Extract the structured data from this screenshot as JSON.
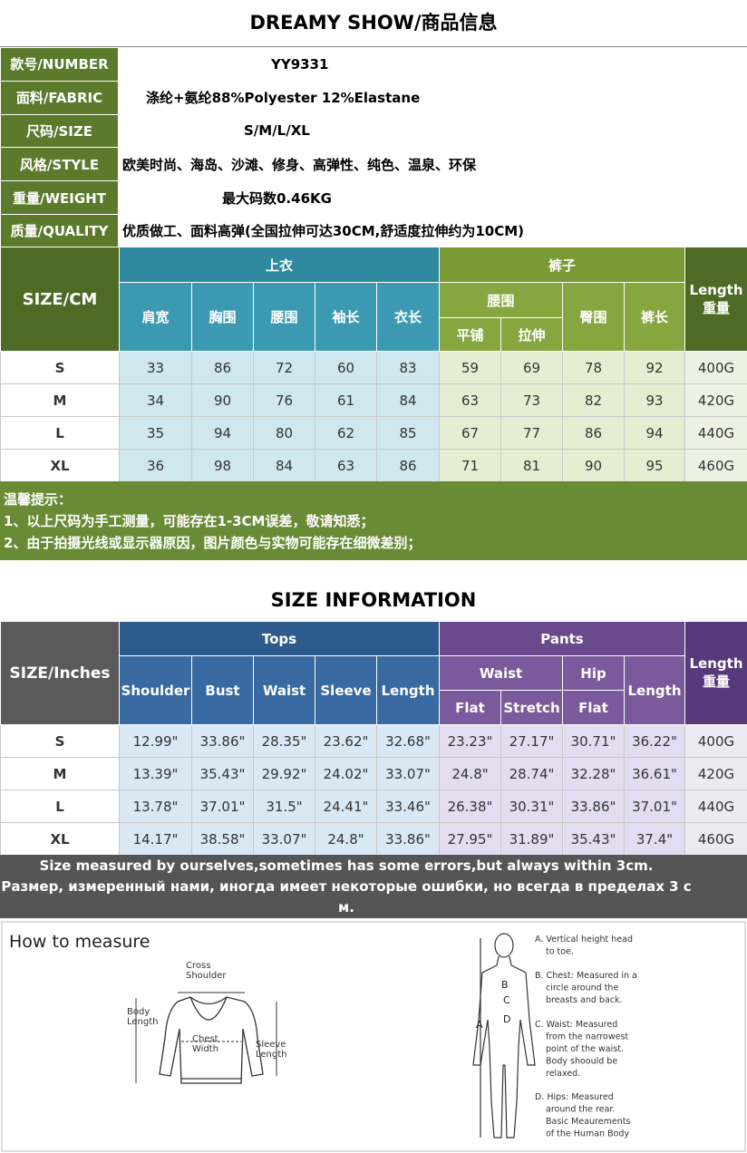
{
  "header": {
    "title": "DREAMY SHOW/商品信息"
  },
  "info": [
    {
      "label": "款号/NUMBER",
      "value": "YY9331"
    },
    {
      "label": "面料/FABRIC",
      "value": "涤纶+氨纶88%Polyester 12%Elastane"
    },
    {
      "label": "尺码/SIZE",
      "value": "S/M/L/XL"
    },
    {
      "label": "风格/STYLE",
      "value": "欧美时尚、海岛、沙滩、修身、高弹性、纯色、温泉、环保"
    },
    {
      "label": "重量/WEIGHT",
      "value": "最大码数0.46KG"
    },
    {
      "label": "质量/QUALITY",
      "value": "优质做工、面料高弹(全国拉伸可达30CM,舒适度拉伸约为10CM)"
    }
  ],
  "cm_table": {
    "corner": "SIZE/CM",
    "tops": "上衣",
    "pants": "裤子",
    "length": [
      "Length",
      "重量"
    ],
    "tops_columns": [
      "肩宽",
      "胸围",
      "腰围",
      "袖长",
      "衣长"
    ],
    "pants_waist": "腰围",
    "pants_waist_sub": [
      "平铺",
      "拉伸"
    ],
    "pants_columns": [
      "臀围",
      "裤长"
    ],
    "rows": [
      {
        "size": "S",
        "values": [
          33,
          86,
          72,
          60,
          83,
          59,
          69,
          78,
          92
        ],
        "weight": "400G"
      },
      {
        "size": "M",
        "values": [
          34,
          90,
          76,
          61,
          84,
          63,
          73,
          82,
          93
        ],
        "weight": "420G"
      },
      {
        "size": "L",
        "values": [
          35,
          94,
          80,
          62,
          85,
          67,
          77,
          86,
          94
        ],
        "weight": "440G"
      },
      {
        "size": "XL",
        "values": [
          36,
          98,
          84,
          63,
          86,
          71,
          81,
          90,
          95
        ],
        "weight": "460G"
      }
    ]
  },
  "notes": {
    "title": "温馨提示：",
    "lines": [
      "1、以上尺码为手工测量，可能存在1-3CM误差，敬请知悉；",
      "2、由于拍摄光线或显示器原因，图片颜色与实物可能存在细微差别；"
    ]
  },
  "inch_table": {
    "title": "SIZE INFORMATION",
    "corner": "SIZE/Inches",
    "tops": "Tops",
    "pants": "Pants",
    "length": [
      "Length",
      "重量"
    ],
    "tops_columns": [
      "Shoulder",
      "Bust",
      "Waist",
      "Sleeve",
      "Length"
    ],
    "pants_waist": "Waist",
    "pants_hip": "Hip",
    "pants_sub": [
      "Flat",
      "Stretch",
      "Flat"
    ],
    "pants_length": "Length",
    "rows": [
      {
        "size": "S",
        "values": [
          "12.99\"",
          "33.86\"",
          "28.35\"",
          "23.62\"",
          "32.68\"",
          "23.23\"",
          "27.17\"",
          "30.71\"",
          "36.22\""
        ],
        "weight": "400G"
      },
      {
        "size": "M",
        "values": [
          "13.39\"",
          "35.43\"",
          "29.92\"",
          "24.02\"",
          "33.07\"",
          "24.8\"",
          "28.74\"",
          "32.28\"",
          "36.61\""
        ],
        "weight": "420G"
      },
      {
        "size": "L",
        "values": [
          "13.78\"",
          "37.01\"",
          "31.5\"",
          "24.41\"",
          "33.46\"",
          "26.38\"",
          "30.31\"",
          "33.86\"",
          "37.01\""
        ],
        "weight": "440G"
      },
      {
        "size": "XL",
        "values": [
          "14.17\"",
          "38.58\"",
          "33.07\"",
          "24.8\"",
          "33.86\"",
          "27.95\"",
          "31.89\"",
          "35.43\"",
          "37.4\""
        ],
        "weight": "460G"
      }
    ],
    "notes": [
      "Size measured by ourselves,sometimes has some errors,but always within 3cm.",
      "Размер, измеренный нами, иногда имеет некоторые ошибки, но всегда в пределах 3 с м."
    ]
  },
  "measure": {
    "title": "How to measure",
    "sweater_labels": {
      "cross_shoulder": [
        "Cross",
        "Shoulder"
      ],
      "body_length": [
        "Body",
        "Length"
      ],
      "chest_width": [
        "Chest",
        "Width"
      ],
      "sleeve_length": [
        "Sleeve",
        "Length"
      ]
    },
    "figure_letters": [
      "A",
      "B",
      "C",
      "D"
    ],
    "descriptions": [
      [
        "A. Vertical height head",
        "to toe."
      ],
      [
        "B. Chest: Measured in a",
        "circle around the",
        "breasts and back."
      ],
      [
        "C. Waist: Measured",
        "from the narrowest",
        "point of the waist.",
        "Body shoould be",
        "relaxed."
      ],
      [
        "D. Hips: Measured",
        "around the rear.",
        "Basic Meaurements",
        "of the Human Body"
      ]
    ]
  }
}
